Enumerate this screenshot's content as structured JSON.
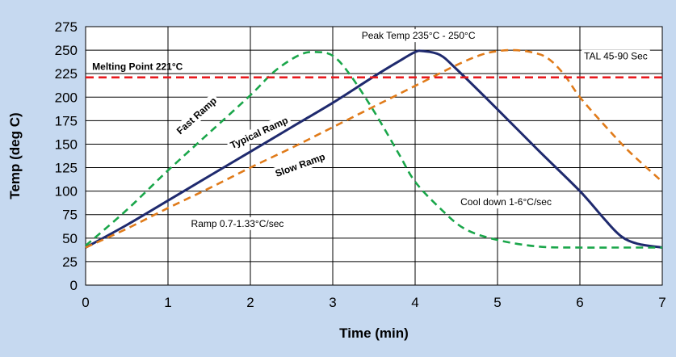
{
  "chart_data": {
    "type": "line",
    "title": "",
    "xlabel": "Time (min)",
    "ylabel": "Temp (deg C)",
    "xlim": [
      0,
      7
    ],
    "ylim": [
      0,
      275
    ],
    "xticks": [
      0,
      1,
      2,
      3,
      4,
      5,
      6,
      7
    ],
    "yticks": [
      0,
      25,
      50,
      75,
      100,
      125,
      150,
      175,
      200,
      225,
      250,
      275
    ],
    "grid": true,
    "series": [
      {
        "name": "Typical Ramp",
        "color": "#1f2a6e",
        "style": "solid",
        "x": [
          0,
          0.5,
          1,
          1.5,
          2,
          2.5,
          3,
          3.5,
          3.8,
          4.0,
          4.1,
          4.3,
          4.5,
          5.0,
          5.5,
          6.0,
          6.3,
          6.5,
          6.7,
          7.0
        ],
        "y": [
          40,
          64,
          90,
          116,
          142,
          168,
          194,
          222,
          238,
          248,
          249,
          245,
          230,
          187,
          143,
          100,
          70,
          52,
          44,
          40
        ]
      },
      {
        "name": "Fast Ramp",
        "color": "#1aa64a",
        "style": "dashed",
        "x": [
          0,
          0.5,
          1,
          1.5,
          2,
          2.3,
          2.6,
          2.8,
          3.0,
          3.2,
          3.5,
          3.8,
          4.0,
          4.3,
          4.6,
          5.0,
          5.5,
          6.0,
          6.5,
          7.0
        ],
        "y": [
          42,
          80,
          122,
          162,
          202,
          228,
          245,
          248,
          244,
          225,
          185,
          140,
          110,
          82,
          60,
          48,
          41,
          40,
          40,
          40
        ]
      },
      {
        "name": "Slow Ramp",
        "color": "#e07b1a",
        "style": "dashed",
        "x": [
          0,
          0.5,
          1,
          1.5,
          2,
          2.5,
          3,
          3.5,
          4,
          4.5,
          4.8,
          5.0,
          5.2,
          5.4,
          5.6,
          5.8,
          6.0,
          6.3,
          6.6,
          7.0
        ],
        "y": [
          40,
          60,
          82,
          103,
          125,
          146,
          168,
          190,
          212,
          234,
          245,
          249,
          250,
          248,
          242,
          225,
          200,
          170,
          142,
          110
        ]
      },
      {
        "name": "Melting Point 221°C",
        "color": "#e8191e",
        "style": "dashed",
        "x": [
          0,
          7
        ],
        "y": [
          221,
          221
        ]
      }
    ],
    "annotations": [
      {
        "text": "Peak Temp   235°C - 250°C",
        "x": 3.35,
        "y": 262
      },
      {
        "text": "TAL 45-90 Sec",
        "x": 6.05,
        "y": 240
      },
      {
        "text": "Melting Point 221°C",
        "x": 0.08,
        "y": 229
      },
      {
        "text": "Ramp  0.7-1.33°C/sec",
        "x": 1.28,
        "y": 62
      },
      {
        "text": "Cool down  1-6°C/sec",
        "x": 4.55,
        "y": 85
      },
      {
        "text": "Fast Ramp",
        "x": 1.15,
        "y": 160,
        "rotate": -42
      },
      {
        "text": "Typical Ramp",
        "x": 1.78,
        "y": 145,
        "rotate": -25
      },
      {
        "text": "Slow Ramp",
        "x": 2.32,
        "y": 115,
        "rotate": -20
      }
    ]
  }
}
